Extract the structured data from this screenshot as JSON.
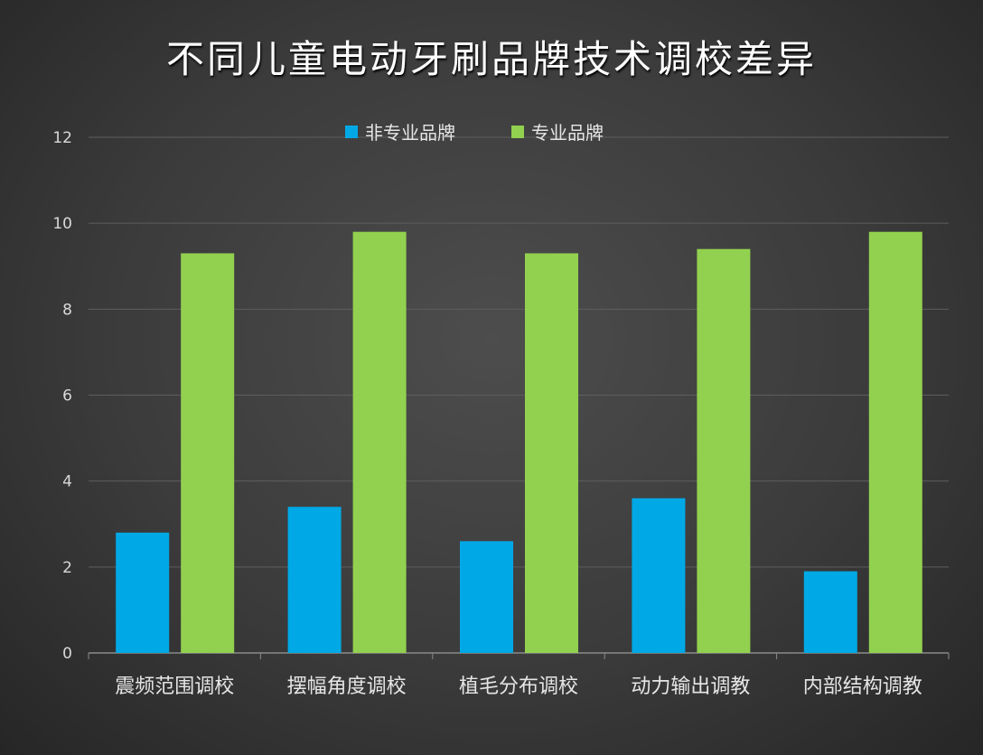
{
  "chart_data": {
    "type": "bar",
    "title": "不同儿童电动牙刷品牌技术调校差异",
    "categories": [
      "震频范围调校",
      "摆幅角度调校",
      "植毛分布调校",
      "动力输出调教",
      "内部结构调教"
    ],
    "series": [
      {
        "name": "非专业品牌",
        "values": [
          2.8,
          3.4,
          2.6,
          3.6,
          1.9
        ],
        "color": "#00a9e6"
      },
      {
        "name": "专业品牌",
        "values": [
          9.3,
          9.8,
          9.3,
          9.4,
          9.8
        ],
        "color": "#92d14f"
      }
    ],
    "ylim": [
      0,
      12
    ],
    "yticks": [
      0,
      2,
      4,
      6,
      8,
      10,
      12
    ],
    "grid": true,
    "legend": "top-center",
    "xlabel": "",
    "ylabel": ""
  }
}
